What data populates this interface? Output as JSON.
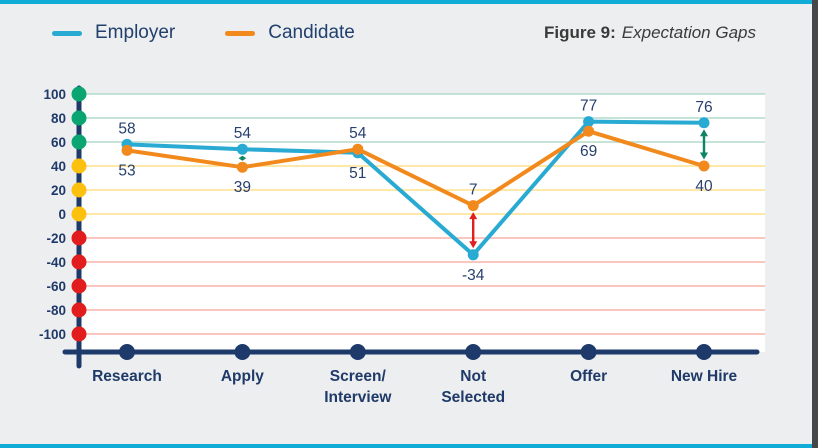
{
  "title": {
    "prefix": "Figure 9:",
    "text": "Expectation Gaps"
  },
  "legend": {
    "items": [
      {
        "label": "Employer",
        "color": "#29aad3"
      },
      {
        "label": "Candidate",
        "color": "#f2891d"
      }
    ]
  },
  "chart_data": {
    "type": "line",
    "title": "Figure 9: Expectation Gaps",
    "categories": [
      "Research",
      "Apply",
      "Screen/Interview",
      "Not Selected",
      "Offer",
      "New Hire"
    ],
    "category_label_lines": [
      [
        "Research"
      ],
      [
        "Apply"
      ],
      [
        "Screen/",
        "Interview"
      ],
      [
        "Not",
        "Selected"
      ],
      [
        "Offer"
      ],
      [
        "New Hire"
      ]
    ],
    "series": [
      {
        "name": "Employer",
        "color": "#29aad3",
        "values": [
          58,
          54,
          51,
          -34,
          77,
          76
        ],
        "label_positions": [
          "above",
          "above",
          "below",
          "below",
          "above",
          "above"
        ]
      },
      {
        "name": "Candidate",
        "color": "#f2891d",
        "values": [
          53,
          39,
          54,
          7,
          69,
          40
        ],
        "label_positions": [
          "below",
          "below",
          "above",
          "above",
          "below",
          "below"
        ]
      }
    ],
    "ylim": [
      -100,
      100
    ],
    "grid": true,
    "legend_position": "top-left",
    "yticks": [
      {
        "value": 100,
        "label": "100",
        "dot_color": "#0aa571",
        "grid_color": "#b2dbca"
      },
      {
        "value": 80,
        "label": "80",
        "dot_color": "#0aa571",
        "grid_color": "#b2dbca"
      },
      {
        "value": 60,
        "label": "60",
        "dot_color": "#0aa571",
        "grid_color": "#b2dbca"
      },
      {
        "value": 40,
        "label": "40",
        "dot_color": "#fcc10c",
        "grid_color": "#ffe08c"
      },
      {
        "value": 20,
        "label": "20",
        "dot_color": "#fcc10c",
        "grid_color": "#ffe08c"
      },
      {
        "value": 0,
        "label": "0",
        "dot_color": "#fcc10c",
        "grid_color": "#ffe08c"
      },
      {
        "value": -20,
        "label": "-20",
        "dot_color": "#e11d1d",
        "grid_color": "#f8b4a8"
      },
      {
        "value": -40,
        "label": "-40",
        "dot_color": "#e11d1d",
        "grid_color": "#f8b4a8"
      },
      {
        "value": -60,
        "label": "-60",
        "dot_color": "#e11d1d",
        "grid_color": "#f8b4a8"
      },
      {
        "value": -80,
        "label": "-80",
        "dot_color": "#e11d1d",
        "grid_color": "#f8b4a8"
      },
      {
        "value": -100,
        "label": "-100",
        "dot_color": "#e11d1d",
        "grid_color": "#f8b4a8"
      }
    ],
    "gap_arrows": [
      {
        "category": "Apply",
        "category_index": 1,
        "color": "#0d8565"
      },
      {
        "category": "Not Selected",
        "category_index": 3,
        "color": "#e01f1f"
      },
      {
        "category": "New Hire",
        "category_index": 5,
        "color": "#0d8565"
      }
    ]
  },
  "colors": {
    "page_background": "#eceef0",
    "plot_background": "#ffffff",
    "accent_bar": "#10aed6",
    "right_border": "#44474a",
    "axis": "#1e3a6a"
  }
}
